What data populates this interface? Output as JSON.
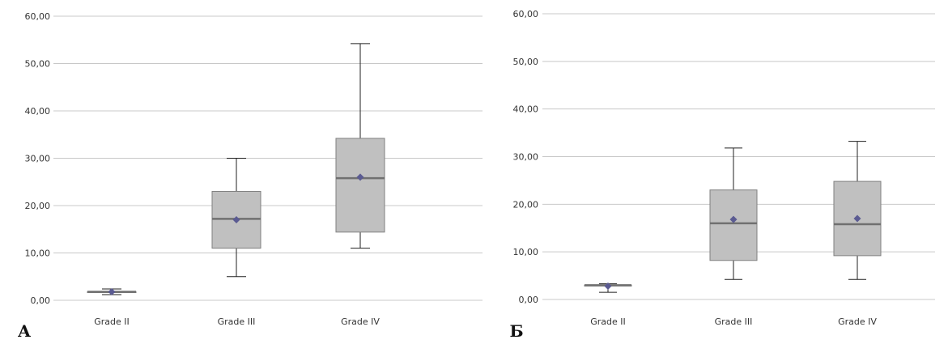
{
  "colors": {
    "grid": "#c8c8c8",
    "box_fill": "#c0c0c0",
    "box_stroke": "#7f7f7f",
    "median": "#707070",
    "whisker": "#202020",
    "mean_marker": "#5b5b92"
  },
  "chart_data": [
    {
      "type": "boxplot",
      "panel_label": "А",
      "ylim": [
        0,
        60
      ],
      "yticks": [
        "0,00",
        "10,00",
        "20,00",
        "30,00",
        "40,00",
        "50,00",
        "60,00"
      ],
      "grid": true,
      "categories": [
        "Grade II",
        "Grade III",
        "Grade IV"
      ],
      "boxes": [
        {
          "min": 1.2,
          "q1": 1.8,
          "median": 1.8,
          "q3": 1.8,
          "max": 2.4,
          "mean": 1.8
        },
        {
          "min": 5.0,
          "q1": 11.0,
          "median": 17.2,
          "q3": 23.0,
          "max": 30.0,
          "mean": 17.0
        },
        {
          "min": 11.0,
          "q1": 14.4,
          "median": 25.8,
          "q3": 34.2,
          "max": 54.2,
          "mean": 26.0
        }
      ]
    },
    {
      "type": "boxplot",
      "panel_label": "Б",
      "ylim": [
        0,
        60
      ],
      "yticks": [
        "0,00",
        "10,00",
        "20,00",
        "30,00",
        "40,00",
        "50,00",
        "60,00"
      ],
      "grid": true,
      "categories": [
        "Grade II",
        "Grade III",
        "Grade IV"
      ],
      "boxes": [
        {
          "min": 1.5,
          "q1": 3.0,
          "median": 3.0,
          "q3": 3.0,
          "max": 3.3,
          "mean": 2.8
        },
        {
          "min": 4.2,
          "q1": 8.2,
          "median": 16.0,
          "q3": 23.0,
          "max": 31.8,
          "mean": 16.8
        },
        {
          "min": 4.2,
          "q1": 9.2,
          "median": 15.8,
          "q3": 24.8,
          "max": 33.2,
          "mean": 17.0
        }
      ]
    }
  ]
}
